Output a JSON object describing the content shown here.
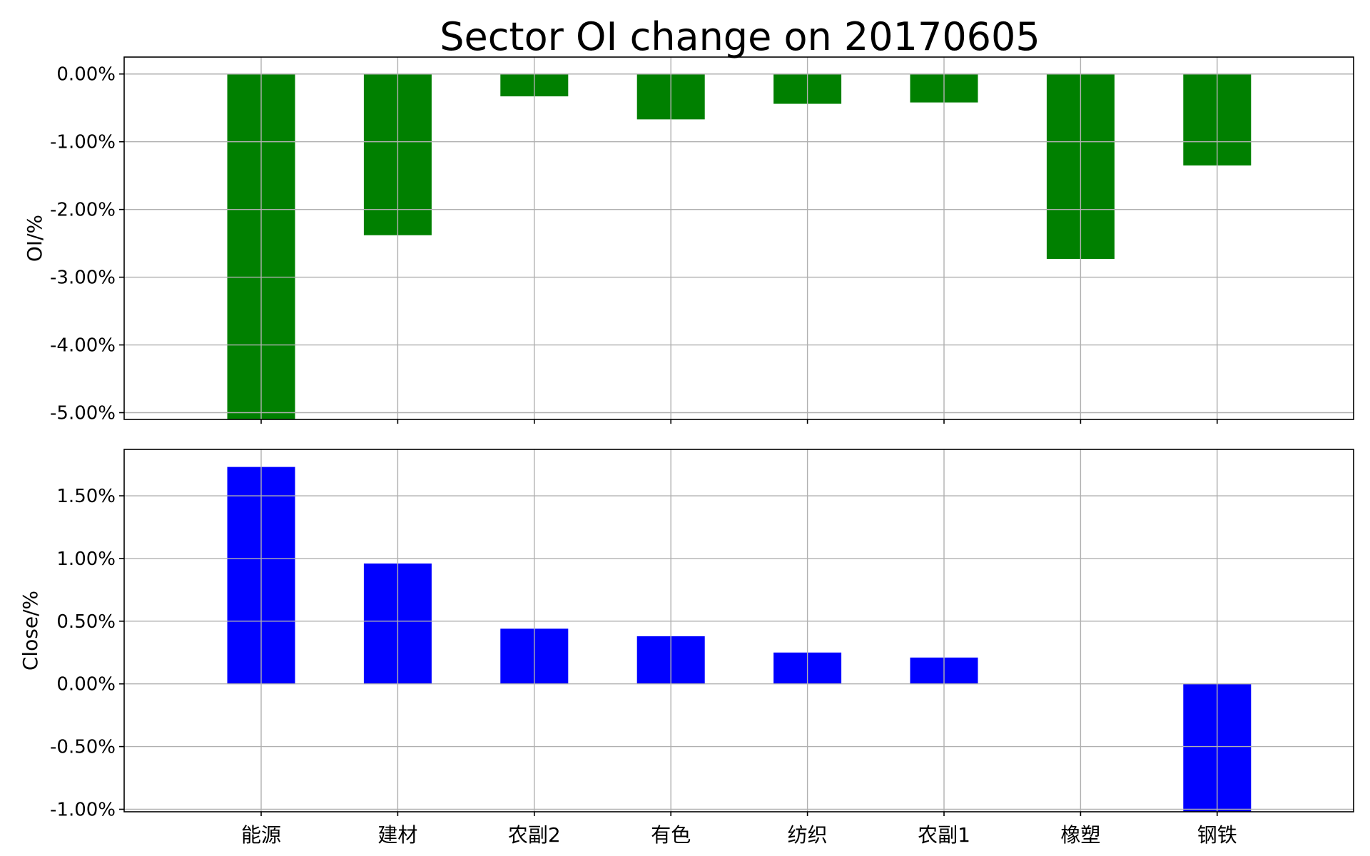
{
  "chart_data": {
    "title": "Sector OI change on 20170605",
    "type": "bar",
    "categories": [
      "能源",
      "建材",
      "农副2",
      "有色",
      "纺织",
      "农副1",
      "橡塑",
      "钢铁"
    ],
    "panels": [
      {
        "ylabel": "OI/%",
        "color": "#008000",
        "values": [
          -5.2,
          -2.38,
          -0.33,
          -0.67,
          -0.44,
          -0.42,
          -2.73,
          -1.35
        ],
        "ylim": [
          -5.1,
          0.25
        ],
        "yticks": [
          0,
          -1,
          -2,
          -3,
          -4,
          -5
        ],
        "yticklabels": [
          "0.00%",
          "-1.00%",
          "-2.00%",
          "-3.00%",
          "-4.00%",
          "-5.00%"
        ]
      },
      {
        "ylabel": "Close/%",
        "color": "#0000ff",
        "values": [
          1.73,
          0.96,
          0.44,
          0.38,
          0.25,
          0.21,
          0.0,
          -1.1
        ],
        "ylim": [
          -1.02,
          1.87
        ],
        "yticks": [
          1.5,
          1.0,
          0.5,
          0.0,
          -0.5,
          -1.0
        ],
        "yticklabels": [
          "1.50%",
          "1.00%",
          "0.50%",
          "0.00%",
          "-0.50%",
          "-1.00%"
        ]
      }
    ],
    "grid": true
  }
}
